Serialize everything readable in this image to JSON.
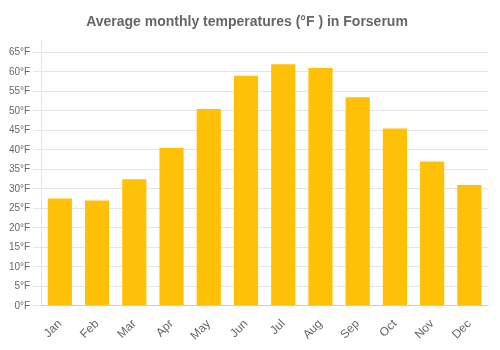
{
  "chart_data": {
    "type": "bar",
    "title": "Average monthly temperatures (°F ) in Forserum",
    "categories": [
      "Jan",
      "Feb",
      "Mar",
      "Apr",
      "May",
      "Jun",
      "Jul",
      "Aug",
      "Sep",
      "Oct",
      "Nov",
      "Dec"
    ],
    "values": [
      27.5,
      27.0,
      32.5,
      40.5,
      50.5,
      59.0,
      62.0,
      61.0,
      53.5,
      45.5,
      37.0,
      31.0
    ],
    "color": "#FFC107",
    "ylim": [
      0,
      68
    ],
    "yticks": [
      {
        "value": 0,
        "label": "0°F"
      },
      {
        "value": 5,
        "label": "5°F"
      },
      {
        "value": 10,
        "label": "10°F"
      },
      {
        "value": 15,
        "label": "15°F"
      },
      {
        "value": 20,
        "label": "20°F"
      },
      {
        "value": 25,
        "label": "25°F"
      },
      {
        "value": 30,
        "label": "30°F"
      },
      {
        "value": 35,
        "label": "35°F"
      },
      {
        "value": 40,
        "label": "40°F"
      },
      {
        "value": 45,
        "label": "45°F"
      },
      {
        "value": 50,
        "label": "50°F"
      },
      {
        "value": 55,
        "label": "55°F"
      },
      {
        "value": 60,
        "label": "60°F"
      },
      {
        "value": 65,
        "label": "65°F"
      }
    ],
    "grid": true
  }
}
